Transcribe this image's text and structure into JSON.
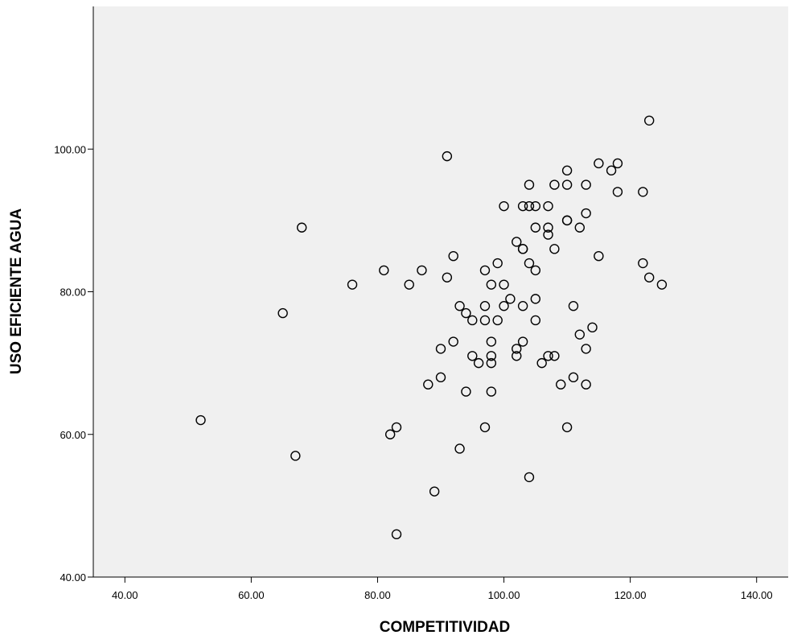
{
  "chart_data": {
    "type": "scatter",
    "title": "",
    "xlabel": "COMPETITIVIDAD",
    "ylabel": "USO EFICIENTE AGUA",
    "xlim": [
      35,
      145
    ],
    "ylim": [
      40,
      120
    ],
    "x_ticks": [
      40,
      60,
      80,
      100,
      120,
      140
    ],
    "x_tick_labels": [
      "40.00",
      "60.00",
      "80.00",
      "100.00",
      "120.00",
      "140.00"
    ],
    "y_ticks": [
      40,
      60,
      80,
      100
    ],
    "y_tick_labels": [
      "40.00",
      "60.00",
      "80.00",
      "100.00"
    ],
    "grid": false,
    "legend": "none",
    "colors": {
      "plot_background": "#f0f0f0",
      "marker_edge": "#000000",
      "axis": "#000000"
    },
    "series": [
      {
        "points": [
          [
            52,
            62
          ],
          [
            65,
            77
          ],
          [
            67,
            57
          ],
          [
            68,
            89
          ],
          [
            76,
            81
          ],
          [
            81,
            83
          ],
          [
            82,
            60
          ],
          [
            83,
            61
          ],
          [
            83,
            46
          ],
          [
            85,
            81
          ],
          [
            87,
            83
          ],
          [
            88,
            67
          ],
          [
            89,
            52
          ],
          [
            90,
            72
          ],
          [
            90,
            68
          ],
          [
            91,
            99
          ],
          [
            91,
            82
          ],
          [
            92,
            85
          ],
          [
            92,
            73
          ],
          [
            93,
            78
          ],
          [
            93,
            58
          ],
          [
            94,
            77
          ],
          [
            94,
            66
          ],
          [
            95,
            76
          ],
          [
            95,
            71
          ],
          [
            96,
            70
          ],
          [
            97,
            83
          ],
          [
            97,
            78
          ],
          [
            97,
            76
          ],
          [
            97,
            61
          ],
          [
            98,
            81
          ],
          [
            98,
            73
          ],
          [
            98,
            71
          ],
          [
            98,
            70
          ],
          [
            98,
            66
          ],
          [
            99,
            84
          ],
          [
            99,
            76
          ],
          [
            100,
            92
          ],
          [
            100,
            81
          ],
          [
            100,
            78
          ],
          [
            101,
            79
          ],
          [
            102,
            87
          ],
          [
            102,
            72
          ],
          [
            102,
            71
          ],
          [
            103,
            92
          ],
          [
            103,
            86
          ],
          [
            103,
            86
          ],
          [
            103,
            78
          ],
          [
            103,
            73
          ],
          [
            104,
            95
          ],
          [
            104,
            92
          ],
          [
            104,
            84
          ],
          [
            104,
            54
          ],
          [
            105,
            92
          ],
          [
            105,
            89
          ],
          [
            105,
            83
          ],
          [
            105,
            79
          ],
          [
            105,
            76
          ],
          [
            106,
            70
          ],
          [
            107,
            92
          ],
          [
            107,
            89
          ],
          [
            107,
            88
          ],
          [
            107,
            71
          ],
          [
            108,
            95
          ],
          [
            108,
            86
          ],
          [
            108,
            71
          ],
          [
            109,
            67
          ],
          [
            110,
            97
          ],
          [
            110,
            95
          ],
          [
            110,
            90
          ],
          [
            110,
            90
          ],
          [
            110,
            61
          ],
          [
            111,
            78
          ],
          [
            111,
            68
          ],
          [
            112,
            89
          ],
          [
            112,
            74
          ],
          [
            113,
            95
          ],
          [
            113,
            91
          ],
          [
            113,
            72
          ],
          [
            113,
            67
          ],
          [
            114,
            75
          ],
          [
            115,
            98
          ],
          [
            115,
            85
          ],
          [
            117,
            97
          ],
          [
            118,
            98
          ],
          [
            118,
            94
          ],
          [
            122,
            94
          ],
          [
            122,
            84
          ],
          [
            123,
            104
          ],
          [
            123,
            82
          ],
          [
            125,
            81
          ]
        ]
      }
    ]
  }
}
